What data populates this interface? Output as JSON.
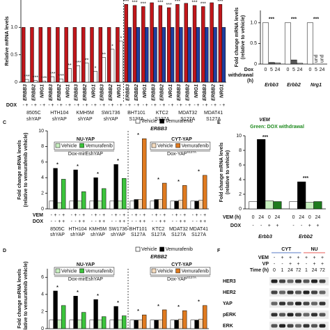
{
  "chart_data": [
    {
      "type": "bar",
      "y_label": "Relative mRNA levels",
      "ylim": [
        0,
        1.5
      ],
      "yticks": [
        0,
        0.5,
        {
          "value": 1,
          "label": "1.0"
        }
      ],
      "genes": [
        "ERBB3",
        "ERBB2",
        "NRG1"
      ],
      "groups": [
        [
          "8505C",
          "shYAP"
        ],
        [
          "HTH104",
          "shYAP"
        ],
        [
          "KMH5M",
          "shYAP"
        ],
        [
          "SW1736",
          "shYAP"
        ],
        [
          "BHT101",
          "S127A"
        ],
        [
          "KTC2",
          "S127A"
        ],
        [
          "MDAT32",
          "S127A"
        ],
        [
          "MDAT41",
          "S127A"
        ]
      ],
      "bar_rows": [
        {
          "label": "DOX",
          "marks": [
            "-",
            "+"
          ]
        }
      ],
      "series": [
        {
          "color": "#c0161b",
          "values": [
            1,
            1,
            1,
            1,
            1,
            1,
            1,
            1,
            1,
            1,
            1,
            1,
            1.42,
            1.4,
            1.38,
            1.45,
            1.4,
            1.36,
            1.42,
            1.44,
            1.4,
            1.38,
            1.45,
            1.42
          ],
          "significance": [
            null,
            null,
            null,
            null,
            null,
            null,
            null,
            null,
            null,
            null,
            null,
            null,
            "***",
            "***",
            "***",
            "***",
            "***",
            "***",
            "***",
            "***",
            "***",
            "***",
            "***",
            "***"
          ]
        },
        {
          "colors": [
            "#ffffff",
            "#ffffff",
            "#ffffff",
            "#ffffff",
            "#ffffff",
            "#ffffff",
            "#ffffff",
            "#ffffff",
            "#ffffff",
            "#ffffff",
            "#ffffff",
            "#ffffff",
            "#1f3f9f",
            "#1f3f9f",
            "#1f3f9f",
            "#1f3f9f",
            "#1f3f9f",
            "#1f3f9f",
            "#1f3f9f",
            "#1f3f9f",
            "#1f3f9f",
            "#1f3f9f",
            "#1f3f9f",
            "#1f3f9f"
          ],
          "values": [
            0.05,
            0.03,
            0.02,
            0.1,
            0.06,
            0.25,
            0.3,
            0.35,
            0.2,
            0.45,
            0.6,
            0.75,
            1,
            1,
            1,
            1,
            1,
            1,
            1,
            1,
            1,
            1,
            1,
            1
          ],
          "significance": [
            "***",
            "***",
            "***",
            "***",
            "***",
            "**",
            "***",
            "**",
            "*",
            "**",
            "*",
            "*",
            null,
            null,
            null,
            null,
            null,
            null,
            null,
            null,
            null,
            null,
            null,
            null
          ]
        }
      ]
    },
    {
      "type": "bar",
      "y_label": [
        "Fold change mRNA levels",
        "(relative to vehicle)"
      ],
      "ylim": [
        0,
        1.3
      ],
      "yticks": [
        0,
        0.5,
        {
          "value": 1,
          "label": "1.0"
        }
      ],
      "categories": [
        "Erbb3",
        "Erbb2",
        "Nrg1"
      ],
      "bar_rows": [
        {
          "label": [
            "Dox",
            "withdrawal",
            "(h)"
          ],
          "marks": [
            "0",
            "5",
            "24"
          ]
        }
      ],
      "series": [
        {
          "color": "#ffffff",
          "values": [
            1,
            1,
            1
          ]
        },
        {
          "color": "#555555",
          "values": [
            0.04,
            0.1,
            null
          ],
          "value_labels": [
            null,
            null,
            "und"
          ]
        },
        {
          "color": "#aaaaaa",
          "values": [
            0.03,
            0.02,
            null
          ],
          "value_labels": [
            null,
            null,
            "und"
          ]
        }
      ],
      "significance": [
        "***",
        "***",
        "***"
      ]
    },
    {
      "type": "bar",
      "panel": "C",
      "title": "ERBB3",
      "y_label": [
        "Fold change mRNA levels",
        "(relative to vemurafenib vehicle)"
      ],
      "ylim": [
        0,
        10
      ],
      "yticks": [
        0,
        2,
        4,
        6,
        8,
        10
      ],
      "legend": [
        {
          "name": "Vehicle",
          "color": "#ffffff"
        },
        {
          "name": "Vemurafenib",
          "color": "#000000"
        }
      ],
      "sublegends": [
        {
          "title": "NU-YAP",
          "color": "#e0211d",
          "note": "Dox-mirEshYAP",
          "items": [
            {
              "name": "Vehicle",
              "color": "#c8f0c0"
            },
            {
              "name": "Vemurafenib",
              "color": "#3cc43c"
            }
          ]
        },
        {
          "title": "CYT-YAP",
          "color": "#1f4fb4",
          "note": "Dox-YAP",
          "note_sup": "S127A",
          "items": [
            {
              "name": "Vehicle",
              "color": "#f5dcc0"
            },
            {
              "name": "Vemurafenib",
              "color": "#e07b20"
            }
          ]
        }
      ],
      "categories": [
        [
          "8505C",
          "shYAP"
        ],
        [
          "HTH104",
          "shYAP"
        ],
        [
          "KMH5M",
          "shYAP"
        ],
        [
          "SW1736",
          "shYAP"
        ],
        [
          "BHT101",
          "S127A"
        ],
        [
          "KTC2",
          "S127A"
        ],
        [
          "MDAT32",
          "S127A"
        ],
        [
          "MDAT41",
          "S127A"
        ]
      ],
      "bar_rows": [
        {
          "label": "VEM",
          "marks": [
            "-",
            "+",
            "-",
            "+"
          ]
        },
        {
          "label": "DOX",
          "marks": [
            "-",
            "-",
            "+",
            "+"
          ]
        }
      ],
      "series": [
        {
          "color": "#ffffff",
          "values": [
            1,
            1,
            1,
            1,
            1,
            1,
            1,
            1
          ]
        },
        {
          "color": "#000000",
          "values": [
            5.2,
            5.0,
            4.0,
            5.7,
            1.2,
            1.2,
            1.0,
            1.0
          ]
        },
        {
          "colors": [
            "#c8f0c0",
            "#c8f0c0",
            "#c8f0c0",
            "#c8f0c0",
            "#f5dcc0",
            "#f5dcc0",
            "#f5dcc0",
            "#f5dcc0"
          ],
          "values": [
            0.8,
            1.0,
            1.0,
            1.0,
            1.2,
            1.2,
            1.1,
            1.1
          ]
        },
        {
          "colors": [
            "#3cc43c",
            "#3cc43c",
            "#3cc43c",
            "#3cc43c",
            "#e07b20",
            "#e07b20",
            "#e07b20",
            "#e07b20"
          ],
          "values": [
            3.8,
            2.2,
            2.6,
            3.9,
            9.0,
            3.3,
            3.0,
            4.3
          ]
        }
      ],
      "significance": [
        "*",
        "*",
        "*",
        "*",
        "*",
        "*",
        "*",
        "*"
      ]
    },
    {
      "type": "bar",
      "panel": "D",
      "title": "ERBB2",
      "y_label": [
        "Fold change mRNA levels",
        "(relative to vemurafenib vehicle)"
      ],
      "ylim": [
        0,
        7
      ],
      "yticks": [
        0,
        2,
        4,
        6
      ],
      "legend": [
        {
          "name": "Vehicle",
          "color": "#ffffff"
        },
        {
          "name": "Vemurafenib",
          "color": "#000000"
        }
      ],
      "sublegends": [
        {
          "title": "NU-YAP",
          "color": "#e0211d",
          "note": "Dox-mirEshYAP",
          "items": [
            {
              "name": "Vehicle",
              "color": "#c8f0c0"
            },
            {
              "name": "Vemurafenib",
              "color": "#3cc43c"
            }
          ]
        },
        {
          "title": "CYT-YAP",
          "color": "#1f4fb4",
          "note": "Dox-YAP",
          "note_sup": "S127A",
          "items": [
            {
              "name": "Vehicle",
              "color": "#f5dcc0"
            },
            {
              "name": "Vemurafenib",
              "color": "#e07b20"
            }
          ]
        }
      ],
      "series": [
        {
          "color": "#ffffff",
          "values": [
            1,
            1,
            1,
            1,
            1,
            1,
            1,
            1
          ]
        },
        {
          "color": "#000000",
          "values": [
            4.4,
            3.8,
            3.4,
            2.6,
            1.0,
            1.0,
            1.0,
            1.0
          ]
        },
        {
          "colors": [
            "#c8f0c0",
            "#c8f0c0",
            "#c8f0c0",
            "#c8f0c0",
            "#f5dcc0",
            "#f5dcc0",
            "#f5dcc0",
            "#f5dcc0"
          ],
          "values": [
            1.0,
            1.0,
            1.0,
            1.0,
            1.0,
            1.0,
            1.1,
            1.1
          ]
        },
        {
          "colors": [
            "#3cc43c",
            "#3cc43c",
            "#3cc43c",
            "#3cc43c",
            "#e07b20",
            "#e07b20",
            "#e07b20",
            "#e07b20"
          ],
          "values": [
            2.7,
            1.9,
            1.4,
            1.5,
            1.6,
            2.2,
            2.1,
            2.7
          ]
        }
      ],
      "significance": [
        "*",
        "*",
        "*",
        "*",
        "*",
        "*",
        "*",
        "*"
      ]
    },
    {
      "type": "bar",
      "panel": "E",
      "title": "VEM",
      "subtitle": "Green: DOX withdrawal",
      "y_label": [
        "Fold change mRNA levels",
        "(relative to vehicle)"
      ],
      "ylim": [
        0,
        10
      ],
      "yticks": [
        0,
        2,
        4,
        6,
        8,
        10
      ],
      "categories": [
        "Erbb3",
        "Erbb2"
      ],
      "bar_rows": [
        {
          "label": "VEM (h)",
          "marks": [
            "0",
            "24",
            "0",
            "24"
          ]
        },
        {
          "label": "DOX",
          "marks": [
            "-",
            "-",
            "+",
            "+"
          ]
        }
      ],
      "series": [
        {
          "color": "#ffffff",
          "values": [
            1.0,
            1.0
          ]
        },
        {
          "color": "#000000",
          "values": [
            9.5,
            3.7
          ]
        },
        {
          "color": "#c8f0c0",
          "values": [
            1.1,
            0.9
          ]
        },
        {
          "color": "#1e7a1e",
          "values": [
            1.0,
            1.0
          ]
        }
      ],
      "significance": [
        "***",
        "***"
      ]
    }
  ],
  "blot": {
    "panel": "F",
    "groups": [
      {
        "label": "CYT",
        "color": "#1f4fb4"
      },
      {
        "label": "NU",
        "color": "#e0211d"
      }
    ],
    "condition_rows": [
      {
        "label": "VEM",
        "marks": [
          "-",
          "+",
          "+",
          "+",
          "+",
          "+",
          "+"
        ]
      },
      {
        "label": "VP",
        "marks": [
          "-",
          "-",
          "+",
          "+",
          "-",
          "+",
          "+"
        ]
      },
      {
        "label": "Time (h)",
        "marks": [
          "0",
          "1",
          "24",
          "72",
          "1",
          "24",
          "72"
        ]
      }
    ],
    "proteins": [
      "HER3",
      "HER2",
      "YAP",
      "pERK",
      "ERK"
    ]
  }
}
